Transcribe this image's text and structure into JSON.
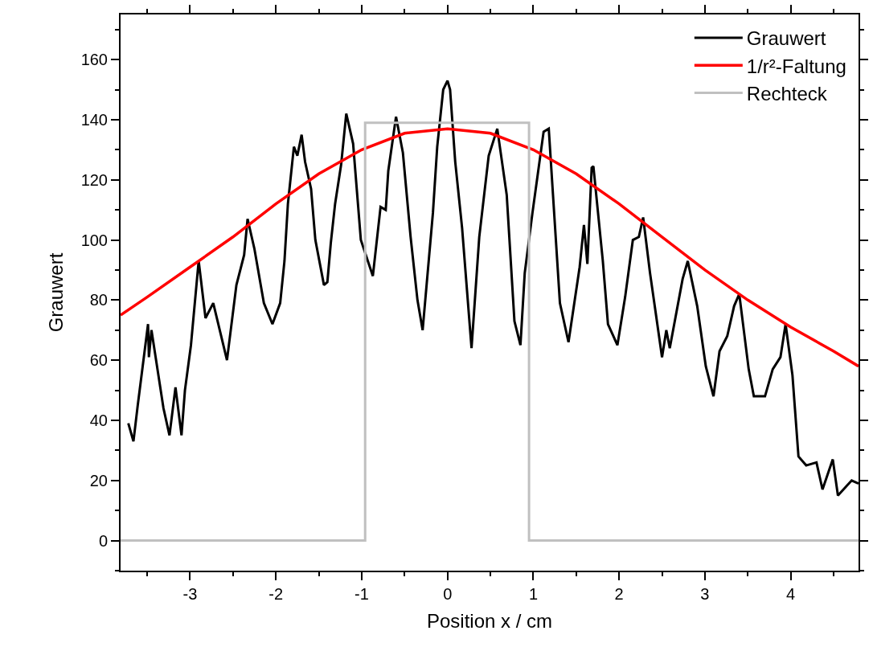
{
  "chart_data": {
    "type": "line",
    "xlabel": "Position x / cm",
    "ylabel": "Grauwert",
    "xlim": [
      -3.81,
      4.79
    ],
    "xticks": [
      -3,
      -2,
      -1,
      0,
      1,
      2,
      3,
      4
    ],
    "ylim": [
      -10,
      175
    ],
    "yticks": [
      0,
      20,
      40,
      60,
      80,
      100,
      120,
      140,
      160
    ],
    "grid": false,
    "legend": "top right",
    "marker": "none",
    "line_style": "solid",
    "series": [
      {
        "name": "Grauwert",
        "color": "#000000",
        "x": [
          -3.72,
          -3.66,
          -3.61,
          -3.49,
          -3.48,
          -3.45,
          -3.31,
          -3.24,
          -3.17,
          -3.1,
          -3.06,
          -2.99,
          -2.9,
          -2.82,
          -2.73,
          -2.57,
          -2.46,
          -2.37,
          -2.33,
          -2.25,
          -2.14,
          -2.04,
          -1.95,
          -1.9,
          -1.86,
          -1.79,
          -1.75,
          -1.7,
          -1.66,
          -1.59,
          -1.54,
          -1.44,
          -1.4,
          -1.36,
          -1.31,
          -1.24,
          -1.18,
          -1.1,
          -1.01,
          -0.87,
          -0.78,
          -0.72,
          -0.69,
          -0.6,
          -0.52,
          -0.43,
          -0.35,
          -0.29,
          -0.17,
          -0.12,
          -0.05,
          0,
          0.03,
          0.09,
          0.17,
          0.28,
          0.37,
          0.48,
          0.58,
          0.69,
          0.78,
          0.85,
          0.9,
          0.99,
          1.12,
          1.18,
          1.31,
          1.41,
          1.54,
          1.59,
          1.63,
          1.68,
          1.7,
          1.81,
          1.87,
          1.98,
          2.07,
          2.16,
          2.23,
          2.28,
          2.36,
          2.42,
          2.5,
          2.55,
          2.59,
          2.74,
          2.8,
          2.91,
          3.01,
          3.1,
          3.17,
          3.26,
          3.34,
          3.4,
          3.51,
          3.57,
          3.7,
          3.79,
          3.88,
          3.94,
          4.02,
          4.09,
          4.18,
          4.3,
          4.37,
          4.49,
          4.55,
          4.71,
          4.79
        ],
        "values": [
          39,
          33,
          45,
          72,
          61,
          70,
          44,
          35,
          51,
          35,
          50,
          65,
          93,
          74,
          79,
          60,
          85,
          95,
          107,
          97,
          79,
          72,
          79,
          93,
          112,
          131,
          128,
          135,
          126,
          117,
          100,
          85,
          86,
          99,
          112,
          125,
          142,
          132,
          100,
          88,
          111,
          110,
          123,
          141,
          129,
          101,
          80,
          70,
          109,
          131,
          150,
          153,
          150,
          126,
          104,
          64,
          101,
          128,
          137,
          115,
          73,
          65,
          89,
          109,
          136,
          137,
          79,
          66,
          91,
          105,
          92,
          124,
          124.5,
          93,
          72,
          65,
          81,
          100,
          101,
          107.5,
          89,
          77,
          61,
          70,
          64,
          87,
          93,
          78,
          58,
          48,
          63,
          68,
          78,
          82,
          57,
          48,
          48,
          57,
          61,
          72,
          55,
          28,
          25,
          26,
          17,
          27,
          15,
          20,
          19
        ]
      },
      {
        "name": "1/r²-Faltung",
        "color": "#ff0000",
        "x": [
          -3.81,
          -3.5,
          -3,
          -2.5,
          -2,
          -1.5,
          -1,
          -0.5,
          0,
          0.5,
          1,
          1.5,
          2,
          2.5,
          3,
          3.5,
          4,
          4.5,
          4.79
        ],
        "values": [
          75,
          81,
          91,
          101,
          112,
          122,
          130,
          135.5,
          137,
          135.5,
          130,
          122,
          112,
          101,
          90,
          80,
          71,
          63,
          58
        ]
      },
      {
        "name": "Rechteck",
        "color": "#c0c0c0",
        "x": [
          -3.81,
          -0.96,
          -0.96,
          0.95,
          0.95,
          4.79
        ],
        "values": [
          0,
          0,
          139,
          139,
          0,
          0
        ]
      }
    ]
  }
}
